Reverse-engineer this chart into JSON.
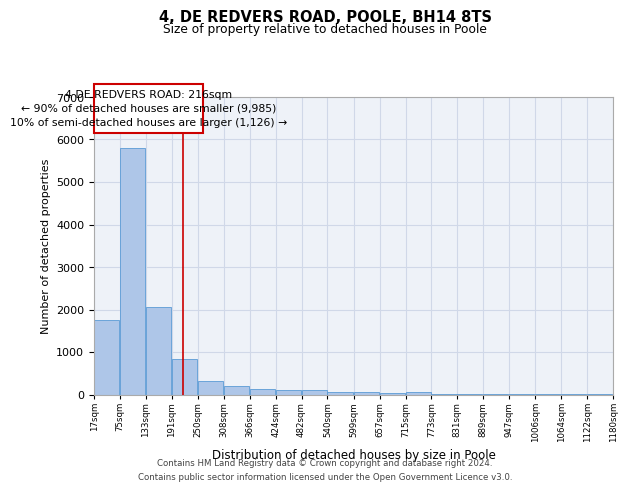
{
  "title": "4, DE REDVERS ROAD, POOLE, BH14 8TS",
  "subtitle": "Size of property relative to detached houses in Poole",
  "xlabel": "Distribution of detached houses by size in Poole",
  "ylabel": "Number of detached properties",
  "bar_color": "#aec6e8",
  "bar_edge_color": "#5b9bd5",
  "grid_color": "#d0d8e8",
  "background_color": "#eef2f8",
  "annotation_box_color": "#cc0000",
  "vline_color": "#cc0000",
  "vline_x": 216,
  "annotation_text_line1": "4 DE REDVERS ROAD: 216sqm",
  "annotation_text_line2": "← 90% of detached houses are smaller (9,985)",
  "annotation_text_line3": "10% of semi-detached houses are larger (1,126) →",
  "footer_line1": "Contains HM Land Registry data © Crown copyright and database right 2024.",
  "footer_line2": "Contains public sector information licensed under the Open Government Licence v3.0.",
  "bin_edges": [
    17,
    75,
    133,
    191,
    250,
    308,
    366,
    424,
    482,
    540,
    599,
    657,
    715,
    773,
    831,
    889,
    947,
    1006,
    1064,
    1122,
    1180
  ],
  "bin_labels": [
    "17sqm",
    "75sqm",
    "133sqm",
    "191sqm",
    "250sqm",
    "308sqm",
    "366sqm",
    "424sqm",
    "482sqm",
    "540sqm",
    "599sqm",
    "657sqm",
    "715sqm",
    "773sqm",
    "831sqm",
    "889sqm",
    "947sqm",
    "1006sqm",
    "1064sqm",
    "1122sqm",
    "1180sqm"
  ],
  "bar_heights": [
    1760,
    5800,
    2050,
    825,
    325,
    200,
    120,
    110,
    100,
    70,
    55,
    45,
    60,
    5,
    5,
    5,
    5,
    5,
    5,
    5,
    0
  ],
  "ylim": [
    0,
    7000
  ],
  "yticks": [
    0,
    1000,
    2000,
    3000,
    4000,
    5000,
    6000,
    7000
  ]
}
